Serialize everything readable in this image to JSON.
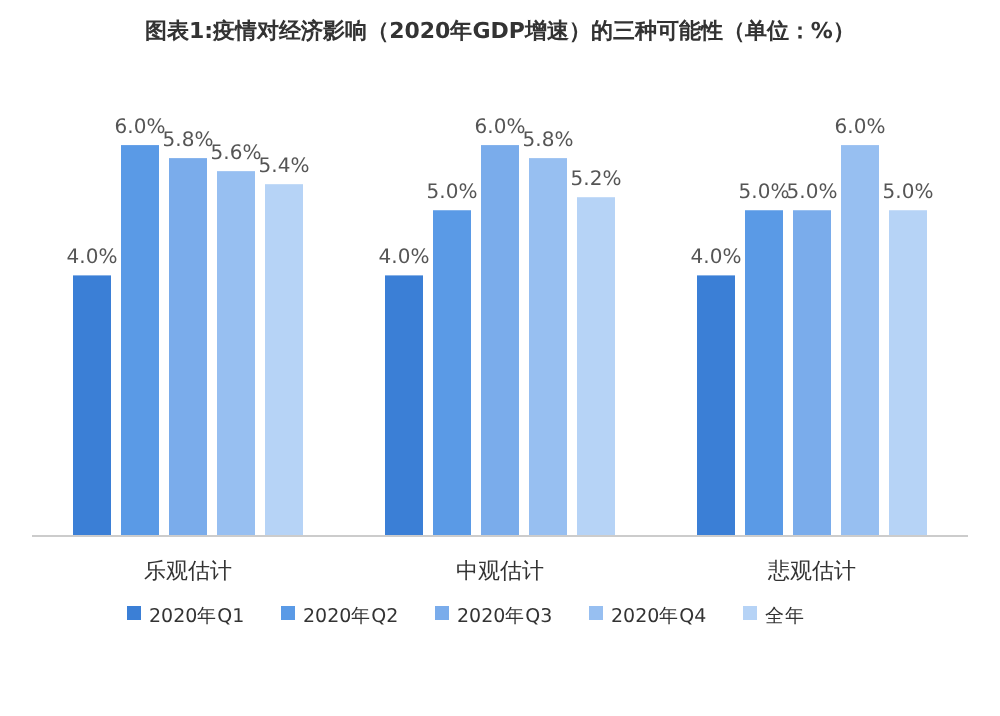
{
  "chart_data": {
    "type": "bar",
    "title": "图表1:疫情对经济影响（2020年GDP增速）的三种可能性（单位：%）",
    "categories": [
      "乐观估计",
      "中观估计",
      "悲观估计"
    ],
    "series": [
      {
        "name": "2020年Q1",
        "color": "#3b7fd6",
        "values": [
          4.0,
          4.0,
          4.0
        ],
        "value_labels": [
          "4.0%",
          "4.0%",
          "4.0%"
        ]
      },
      {
        "name": "2020年Q2",
        "color": "#5a9ae6",
        "values": [
          6.0,
          5.0,
          5.0
        ],
        "value_labels": [
          "6.0%",
          "5.0%",
          "5.0%"
        ]
      },
      {
        "name": "2020年Q3",
        "color": "#7aaceb",
        "values": [
          5.8,
          6.0,
          5.0
        ],
        "value_labels": [
          "5.8%",
          "6.0%",
          "5.0%"
        ]
      },
      {
        "name": "2020年Q4",
        "color": "#97bff1",
        "values": [
          5.6,
          5.8,
          6.0
        ],
        "value_labels": [
          "5.6%",
          "5.8%",
          "6.0%"
        ]
      },
      {
        "name": "全年",
        "color": "#b6d3f6",
        "values": [
          5.4,
          5.2,
          5.0
        ],
        "value_labels": [
          "5.4%",
          "5.2%",
          "5.0%"
        ]
      }
    ],
    "legend": "bottom"
  }
}
